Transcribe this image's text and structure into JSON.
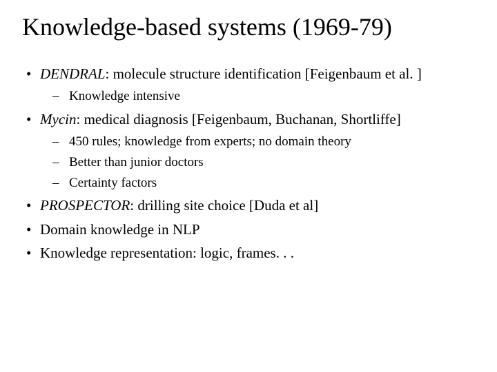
{
  "title": "Knowledge-based systems (1969-79)",
  "bullets": {
    "b1_name": "DENDRAL",
    "b1_rest": ": molecule structure identification [Feigenbaum et al. ]",
    "b1_sub1": "Knowledge intensive",
    "b2_name": "Mycin",
    "b2_rest": ": medical diagnosis [Feigenbaum, Buchanan, Shortliffe]",
    "b2_sub1": "450 rules; knowledge from experts; no domain theory",
    "b2_sub2": "Better than junior doctors",
    "b2_sub3": "Certainty factors",
    "b3_name": "PROSPECTOR",
    "b3_rest": ": drilling site choice [Duda et al]",
    "b4": "Domain knowledge in NLP",
    "b5": "Knowledge representation: logic, frames. . ."
  },
  "style": {
    "background_color": "#ffffff",
    "text_color": "#000000",
    "title_fontsize": 36,
    "body_fontsize": 21,
    "sub_fontsize": 19,
    "font_family": "Times New Roman"
  }
}
